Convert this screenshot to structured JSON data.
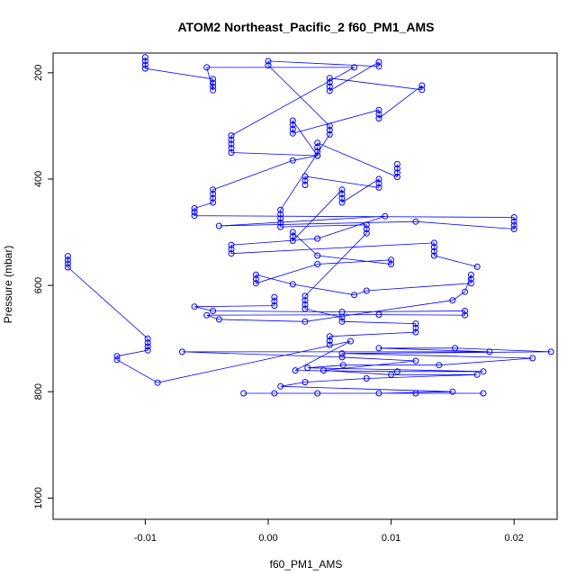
{
  "chart_data": {
    "type": "scatter",
    "title": "ATOM2 Northeast_Pacific_2 f60_PM1_AMS",
    "xlabel": "f60_PM1_AMS",
    "ylabel": "Pressure (mbar)",
    "xlim": [
      -0.0175,
      0.0235
    ],
    "ylim": [
      1040,
      163
    ],
    "y_reversed": true,
    "x_ticks": [
      -0.01,
      0.0,
      0.01,
      0.02
    ],
    "x_tick_labels": [
      "-0.01",
      "0.00",
      "0.01",
      "0.02"
    ],
    "y_ticks": [
      200,
      400,
      600,
      800,
      1000
    ],
    "y_tick_labels": [
      "200",
      "400",
      "600",
      "800",
      "1000"
    ],
    "grid": false,
    "legend": "none",
    "marker": "open-circle",
    "connect_points": true,
    "color": "#0000ff",
    "series": [
      {
        "points": [
          [
            -0.0163,
            545
          ],
          [
            -0.0163,
            552
          ],
          [
            -0.0163,
            559
          ],
          [
            -0.0163,
            566
          ],
          [
            -0.0098,
            700
          ],
          [
            -0.0098,
            708
          ],
          [
            -0.0098,
            715
          ],
          [
            -0.0098,
            722
          ],
          [
            -0.0123,
            733
          ],
          [
            -0.0123,
            740
          ],
          [
            -0.009,
            783
          ],
          [
            0.0067,
            705
          ],
          [
            0.0022,
            760
          ],
          [
            0.0105,
            762
          ],
          [
            0.0175,
            762
          ],
          [
            0.0032,
            755
          ],
          [
            0.0061,
            750
          ],
          [
            0.0139,
            750
          ],
          [
            0.0215,
            737
          ],
          [
            0.006,
            728
          ],
          [
            0.023,
            725
          ],
          [
            0.0152,
            718
          ],
          [
            0.009,
            718
          ],
          [
            0.018,
            725
          ],
          [
            -0.007,
            725
          ],
          [
            0.006,
            735
          ],
          [
            0.012,
            742
          ],
          [
            0.0045,
            760
          ],
          [
            0.01,
            768
          ],
          [
            0.017,
            768
          ],
          [
            0.008,
            775
          ],
          [
            0.003,
            782
          ],
          [
            0.001,
            790
          ],
          [
            0.015,
            800
          ],
          [
            0.009,
            803
          ],
          [
            0.0175,
            803
          ],
          [
            0.0005,
            803
          ],
          [
            -0.002,
            803
          ],
          [
            0.004,
            803
          ],
          [
            0.012,
            803
          ]
        ]
      },
      {
        "points": [
          [
            -0.01,
            171
          ],
          [
            -0.01,
            178
          ],
          [
            -0.01,
            185
          ],
          [
            -0.01,
            192
          ],
          [
            -0.0045,
            212
          ],
          [
            -0.0045,
            219
          ],
          [
            -0.0045,
            226
          ],
          [
            -0.0045,
            233
          ],
          [
            -0.005,
            190
          ],
          [
            0.007,
            190
          ],
          [
            -0.003,
            318
          ],
          [
            -0.003,
            326
          ],
          [
            -0.003,
            334
          ],
          [
            -0.003,
            342
          ],
          [
            -0.003,
            350
          ],
          [
            0.004,
            356
          ],
          [
            0.002,
            365
          ],
          [
            -0.0045,
            420
          ],
          [
            -0.0045,
            428
          ],
          [
            -0.0045,
            436
          ],
          [
            -0.0045,
            444
          ],
          [
            -0.006,
            455
          ],
          [
            -0.006,
            462
          ],
          [
            -0.006,
            469
          ],
          [
            0.02,
            472
          ],
          [
            0.02,
            480
          ],
          [
            0.02,
            487
          ],
          [
            0.02,
            494
          ],
          [
            0.012,
            480
          ],
          [
            -0.004,
            488
          ],
          [
            0.0095,
            470
          ],
          [
            0.004,
            512
          ],
          [
            -0.003,
            524
          ],
          [
            -0.003,
            532
          ],
          [
            -0.003,
            540
          ],
          [
            0.0135,
            520
          ],
          [
            0.0135,
            528
          ],
          [
            0.0135,
            536
          ],
          [
            0.0135,
            544
          ],
          [
            0.017,
            565
          ]
        ]
      },
      {
        "points": [
          [
            0.0005,
            622
          ],
          [
            0.0005,
            630
          ],
          [
            0.0005,
            638
          ],
          [
            -0.006,
            640
          ],
          [
            -0.0045,
            648
          ],
          [
            0.006,
            650
          ],
          [
            0.016,
            648
          ],
          [
            0.016,
            656
          ],
          [
            0.009,
            655
          ],
          [
            -0.005,
            656
          ],
          [
            -0.004,
            664
          ],
          [
            0.003,
            668
          ],
          [
            0.015,
            628
          ],
          [
            0.016,
            612
          ],
          [
            0.0165,
            580
          ],
          [
            0.0165,
            588
          ],
          [
            0.0165,
            596
          ],
          [
            0.008,
            610
          ],
          [
            0.007,
            618
          ],
          [
            0.002,
            598
          ],
          [
            -0.001,
            580
          ],
          [
            -0.001,
            588
          ],
          [
            -0.001,
            596
          ],
          [
            0.004,
            560
          ],
          [
            0.01,
            552
          ],
          [
            0.01,
            560
          ],
          [
            0.004,
            544
          ],
          [
            0.002,
            500
          ],
          [
            0.002,
            508
          ],
          [
            0.002,
            516
          ],
          [
            0.006,
            420
          ],
          [
            0.006,
            428
          ],
          [
            0.006,
            436
          ],
          [
            0.006,
            444
          ],
          [
            0.009,
            400
          ],
          [
            0.009,
            408
          ],
          [
            0.009,
            416
          ],
          [
            0.003,
            395
          ],
          [
            0.003,
            403
          ],
          [
            0.003,
            411
          ]
        ]
      },
      {
        "points": [
          [
            0.0105,
            372
          ],
          [
            0.0105,
            380
          ],
          [
            0.0105,
            388
          ],
          [
            0.0105,
            396
          ],
          [
            0.004,
            332
          ],
          [
            0.004,
            340
          ],
          [
            0.004,
            348
          ],
          [
            0.004,
            356
          ],
          [
            0.002,
            290
          ],
          [
            0.002,
            298
          ],
          [
            0.002,
            306
          ],
          [
            0.002,
            314
          ],
          [
            0.009,
            270
          ],
          [
            0.009,
            278
          ],
          [
            0.009,
            286
          ],
          [
            0.0125,
            224
          ],
          [
            0.0125,
            232
          ],
          [
            0.005,
            210
          ],
          [
            0.005,
            218
          ],
          [
            0.005,
            226
          ],
          [
            0.005,
            234
          ],
          [
            0.009,
            180
          ],
          [
            0.009,
            188
          ],
          [
            0.0,
            178
          ],
          [
            0.0,
            186
          ],
          [
            0.005,
            300
          ],
          [
            0.005,
            308
          ],
          [
            0.005,
            316
          ],
          [
            0.001,
            458
          ],
          [
            0.001,
            466
          ],
          [
            0.001,
            474
          ],
          [
            0.001,
            482
          ],
          [
            0.001,
            490
          ],
          [
            0.008,
            486
          ],
          [
            0.008,
            494
          ],
          [
            0.008,
            502
          ],
          [
            0.003,
            620
          ],
          [
            0.003,
            628
          ],
          [
            0.003,
            636
          ],
          [
            0.003,
            644
          ],
          [
            0.006,
            660
          ],
          [
            0.006,
            668
          ],
          [
            0.012,
            672
          ],
          [
            0.012,
            680
          ],
          [
            0.012,
            688
          ],
          [
            0.005,
            696
          ],
          [
            0.005,
            704
          ],
          [
            0.005,
            712
          ]
        ]
      }
    ]
  }
}
